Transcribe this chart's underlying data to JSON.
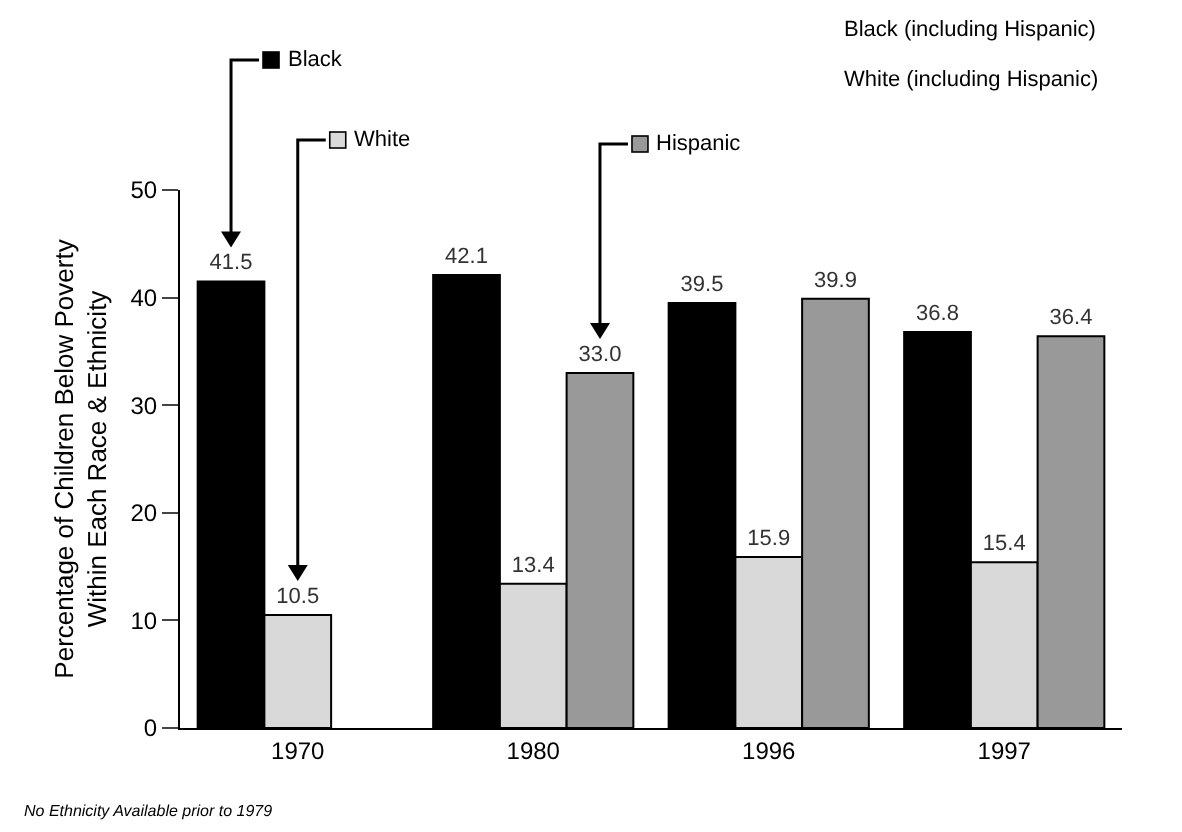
{
  "chart_data": {
    "type": "bar",
    "categories": [
      "1970",
      "1980",
      "1996",
      "1997"
    ],
    "series": [
      {
        "name": "Black",
        "color": "#000000",
        "values": [
          41.5,
          42.1,
          39.5,
          36.8
        ],
        "value_labels": [
          "41.5",
          "42.1",
          "39.5",
          "36.8"
        ]
      },
      {
        "name": "White",
        "color": "#d9d9d9",
        "values": [
          10.5,
          13.4,
          15.9,
          15.4
        ],
        "value_labels": [
          "10.5",
          "13.4",
          "15.9",
          "15.4"
        ]
      },
      {
        "name": "Hispanic",
        "color": "#999999",
        "values": [
          null,
          33.0,
          39.9,
          36.4
        ],
        "value_labels": [
          null,
          "33.0",
          "39.9",
          "36.4"
        ]
      }
    ],
    "ylabel": "Percentage of Children Below Poverty Within Each Race & Ethnicity",
    "ylim": [
      0,
      50
    ],
    "yticks": [
      0,
      10,
      20,
      30,
      40,
      50
    ],
    "grid": false,
    "legend": "top left",
    "annotations": [
      "Black (including Hispanic)",
      "White (including Hispanic)",
      "No Ethnicity Available prior to 1979"
    ]
  }
}
